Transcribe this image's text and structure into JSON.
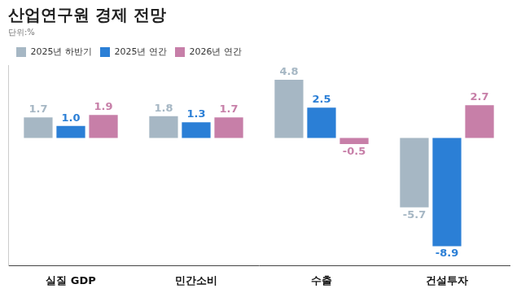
{
  "chart_data": {
    "type": "bar",
    "title": "산업연구원 경제 전망",
    "subtitle": "단위:%",
    "categories": [
      "실질 GDP",
      "민간소비",
      "수출",
      "건설투자"
    ],
    "series": [
      {
        "name": "2025년 하반기",
        "color": "#a6b7c4",
        "values": [
          1.7,
          1.8,
          4.8,
          -5.7
        ],
        "value_labels": [
          "1.7",
          "1.8",
          "4.8",
          "-5.7"
        ]
      },
      {
        "name": "2025년 연간",
        "color": "#2b7fd6",
        "values": [
          1.0,
          1.3,
          2.5,
          -8.9
        ],
        "value_labels": [
          "1.0",
          "1.3",
          "2.5",
          "-8.9"
        ]
      },
      {
        "name": "2026년 연간",
        "color": "#c77fa8",
        "values": [
          1.9,
          1.7,
          -0.5,
          2.7
        ],
        "value_labels": [
          "1.9",
          "1.7",
          "-0.5",
          "2.7"
        ]
      }
    ],
    "ylim": [
      -10.5,
      6
    ],
    "grid": false,
    "legend": "top",
    "data_labels": true,
    "tick_labels": "x"
  }
}
